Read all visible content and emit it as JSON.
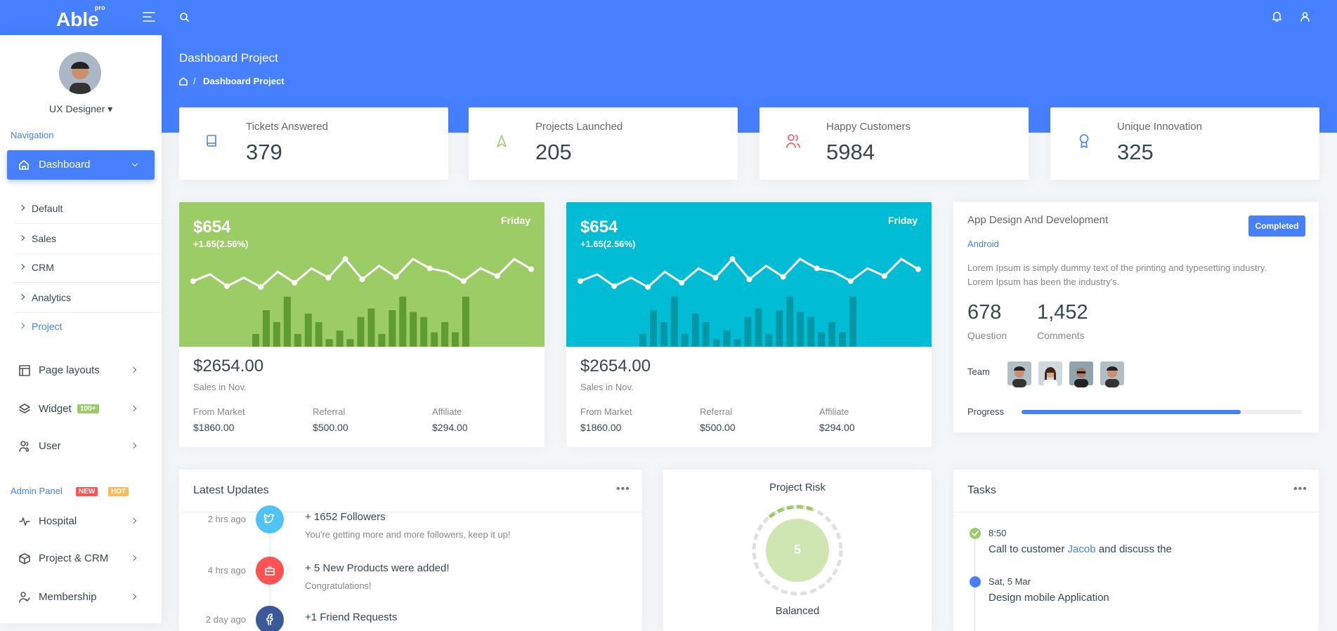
{
  "header": {
    "logo": "Able",
    "logo_badge": "pro"
  },
  "sidebar": {
    "user": "UX Designer",
    "nav_title": "Navigation",
    "active": "Dashboard",
    "submenu": [
      "Default",
      "Sales",
      "CRM",
      "Analytics",
      "Project"
    ],
    "items": [
      {
        "label": "Page layouts"
      },
      {
        "label": "Widget",
        "badge": "100+"
      },
      {
        "label": "User"
      }
    ],
    "admin_title": "Admin Panel",
    "admin_badges": [
      "NEW",
      "HOT"
    ],
    "admin_items": [
      "Hospital",
      "Project & CRM",
      "Membership"
    ]
  },
  "page": {
    "title": "Dashboard Project",
    "breadcrumb": "Dashboard Project"
  },
  "stats": [
    {
      "label": "Tickets Answered",
      "value": "379"
    },
    {
      "label": "Projects Launched",
      "value": "205"
    },
    {
      "label": "Happy Customers",
      "value": "5984"
    },
    {
      "label": "Unique Innovation",
      "value": "325"
    }
  ],
  "sales": [
    {
      "amount": "$654",
      "change": "+1.65(2.56%)",
      "day": "Friday",
      "line": [
        10,
        18,
        4,
        14,
        3,
        21,
        8,
        25,
        14,
        36,
        12,
        28,
        15,
        36,
        25,
        21,
        10,
        25,
        16,
        36,
        24
      ],
      "bars": [
        15,
        43,
        29,
        59,
        15,
        39,
        29,
        9,
        19,
        9,
        35,
        45,
        15,
        43,
        59,
        41,
        35,
        17,
        29,
        17,
        59
      ],
      "total": "$2654.00",
      "period": "Sales in Nov.",
      "splits": [
        {
          "label": "From Market",
          "value": "$1860.00"
        },
        {
          "label": "Referral",
          "value": "$500.00"
        },
        {
          "label": "Affiliate",
          "value": "$294.00"
        }
      ]
    },
    {
      "amount": "$654",
      "change": "+1.65(2.56%)",
      "day": "Friday",
      "line": [
        10,
        18,
        4,
        14,
        3,
        21,
        8,
        25,
        14,
        36,
        12,
        28,
        15,
        36,
        25,
        21,
        10,
        25,
        16,
        36,
        24
      ],
      "bars": [
        15,
        43,
        29,
        59,
        15,
        39,
        29,
        9,
        19,
        9,
        35,
        45,
        15,
        43,
        59,
        41,
        35,
        17,
        29,
        17,
        59
      ],
      "total": "$2654.00",
      "period": "Sales in Nov.",
      "splits": [
        {
          "label": "From Market",
          "value": "$1860.00"
        },
        {
          "label": "Referral",
          "value": "$500.00"
        },
        {
          "label": "Affiliate",
          "value": "$294.00"
        }
      ]
    }
  ],
  "project": {
    "title": "App Design And Development",
    "status": "Completed",
    "tag": "Android",
    "text": [
      "Lorem Ipsum is simply dummy text of the printing and typesetting industry.",
      "Lorem Ipsum has been the industry's."
    ],
    "stats": [
      {
        "value": "678",
        "label": "Question"
      },
      {
        "value": "1,452",
        "label": "Comments"
      }
    ],
    "team_label": "Team",
    "progress_label": "Progress",
    "progress": 78
  },
  "updates": {
    "title": "Latest Updates",
    "items": [
      {
        "time": "2 hrs ago",
        "title": "+ 1652 Followers",
        "text": "You're getting more and more followers, keep it up!"
      },
      {
        "time": "4 hrs ago",
        "title": "+ 5 New Products were added!",
        "text": "Congratulations!"
      },
      {
        "time": "2 day ago",
        "title": "+1 Friend Requests"
      }
    ]
  },
  "risk": {
    "title": "Project Risk",
    "value": "5",
    "label": "Balanced"
  },
  "tasks": {
    "title": "Tasks",
    "items": [
      {
        "time": "8:50",
        "text": [
          "Call to customer ",
          "Jacob",
          " and discuss the"
        ]
      },
      {
        "time": "Sat, 5 Mar",
        "text": [
          "Design mobile Application"
        ]
      }
    ]
  }
}
